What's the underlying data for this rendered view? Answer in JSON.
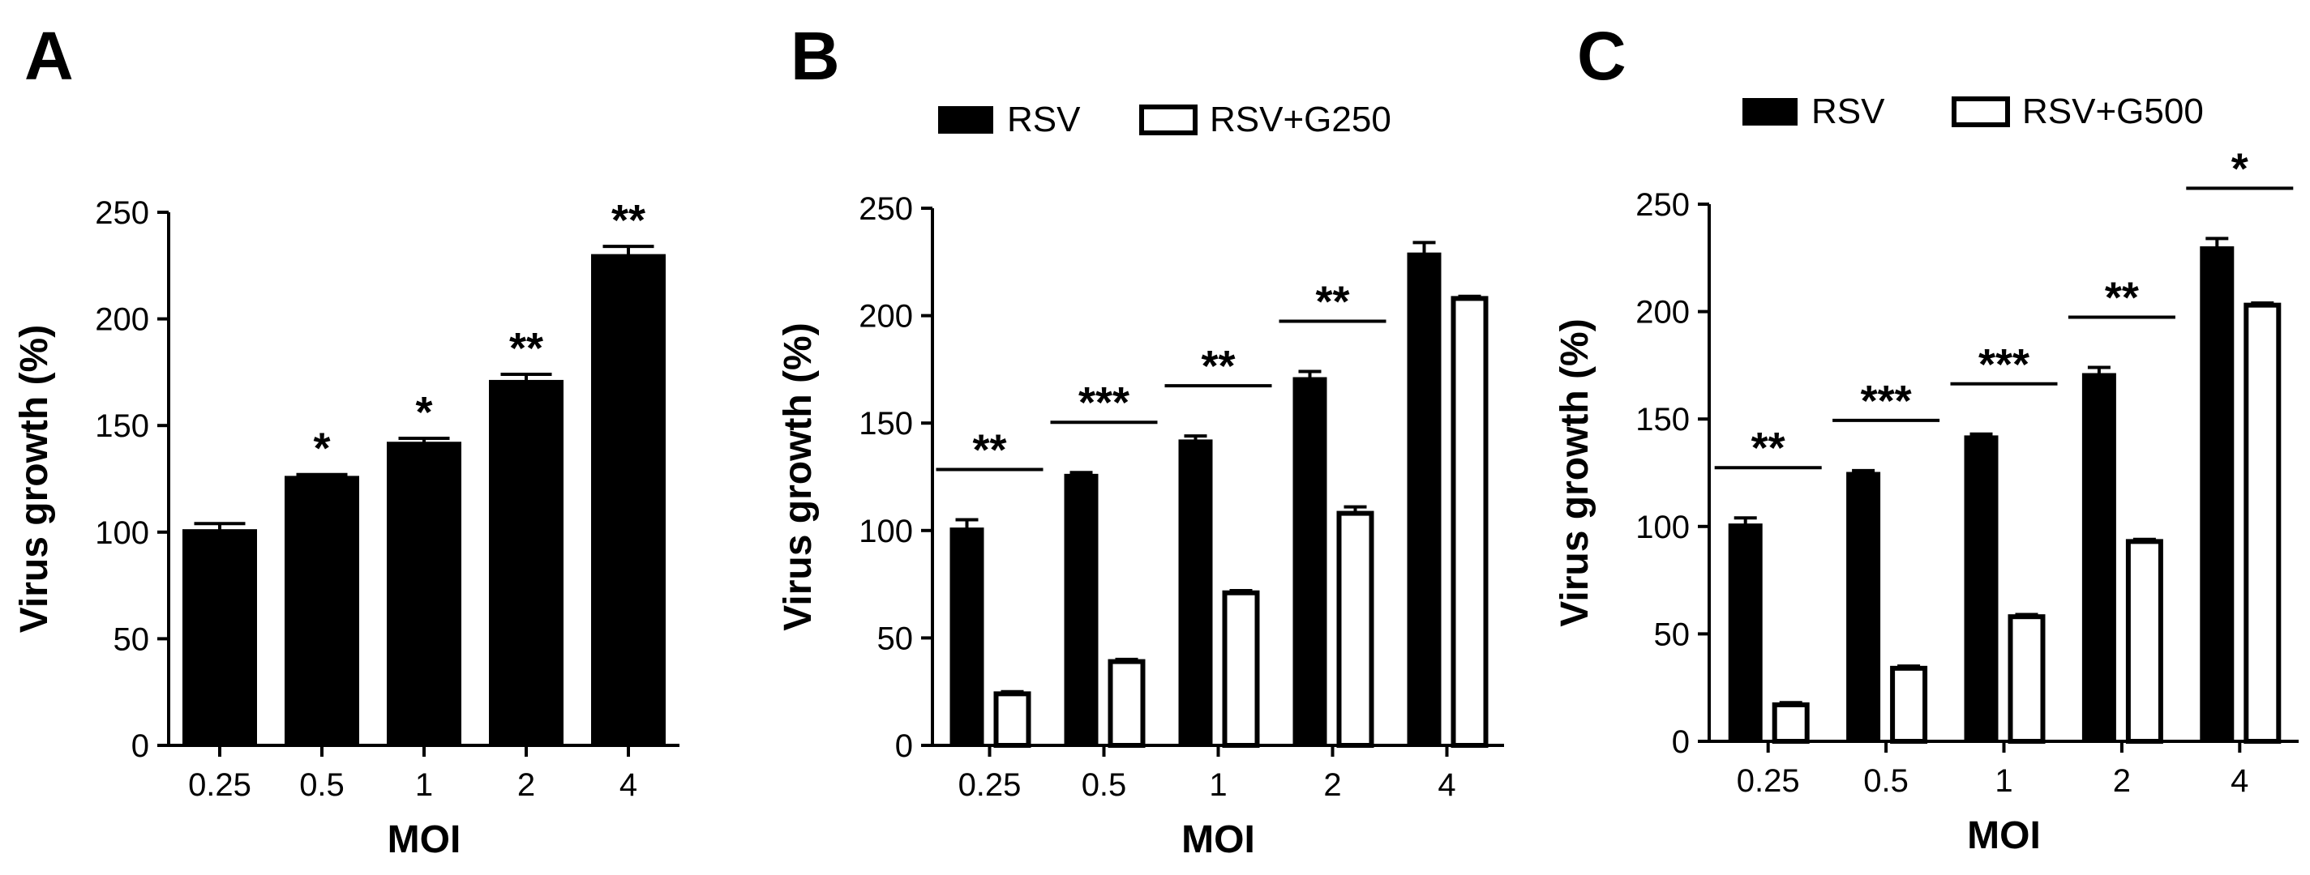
{
  "colors": {
    "bar_fill_primary": "#000000",
    "bar_fill_secondary": "#ffffff",
    "stroke": "#000000",
    "background": "#ffffff"
  },
  "chart_data": [
    {
      "panel": "A",
      "type": "bar",
      "categories": [
        "0.25",
        "0.5",
        "1",
        "2",
        "4"
      ],
      "series": [
        {
          "name": "",
          "style": "filled",
          "values": [
            101,
            126,
            142,
            171,
            230
          ],
          "errors": [
            3,
            1,
            2,
            3,
            4
          ]
        }
      ],
      "significance": [
        "",
        "*",
        "*",
        "**",
        "**"
      ],
      "xlabel": "MOI",
      "ylabel": "Virus growth (%)",
      "ylim": [
        0,
        250
      ],
      "yticks": [
        "0",
        "50",
        "100",
        "150",
        "200",
        "250"
      ],
      "legend": null
    },
    {
      "panel": "B",
      "type": "bar",
      "categories": [
        "0.25",
        "0.5",
        "1",
        "2",
        "4"
      ],
      "series": [
        {
          "name": "RSV",
          "style": "filled",
          "values": [
            101,
            126,
            142,
            171,
            229
          ],
          "errors": [
            4,
            1,
            2,
            3,
            5
          ]
        },
        {
          "name": "RSV+G250",
          "style": "open",
          "values": [
            24,
            39,
            71,
            108,
            208
          ],
          "errors": [
            1,
            1,
            1,
            3,
            1
          ]
        }
      ],
      "significance": [
        "**",
        "***",
        "**",
        "**",
        ""
      ],
      "xlabel": "MOI",
      "ylabel": "Virus growth (%)",
      "ylim": [
        0,
        250
      ],
      "yticks": [
        "0",
        "50",
        "100",
        "150",
        "200",
        "250"
      ],
      "legend": "top"
    },
    {
      "panel": "C",
      "type": "bar",
      "categories": [
        "0.25",
        "0.5",
        "1",
        "2",
        "4"
      ],
      "series": [
        {
          "name": "RSV",
          "style": "filled",
          "values": [
            101,
            125,
            142,
            171,
            230
          ],
          "errors": [
            3,
            1,
            1,
            3,
            4
          ]
        },
        {
          "name": "RSV+G500",
          "style": "open",
          "values": [
            17,
            34,
            58,
            93,
            203
          ],
          "errors": [
            1,
            1,
            1,
            1,
            1
          ]
        }
      ],
      "significance": [
        "**",
        "***",
        "***",
        "**",
        "*"
      ],
      "xlabel": "MOI",
      "ylabel": "Virus growth (%)",
      "ylim": [
        0,
        250
      ],
      "yticks": [
        "0",
        "50",
        "100",
        "150",
        "200",
        "250"
      ],
      "legend": "top"
    }
  ]
}
